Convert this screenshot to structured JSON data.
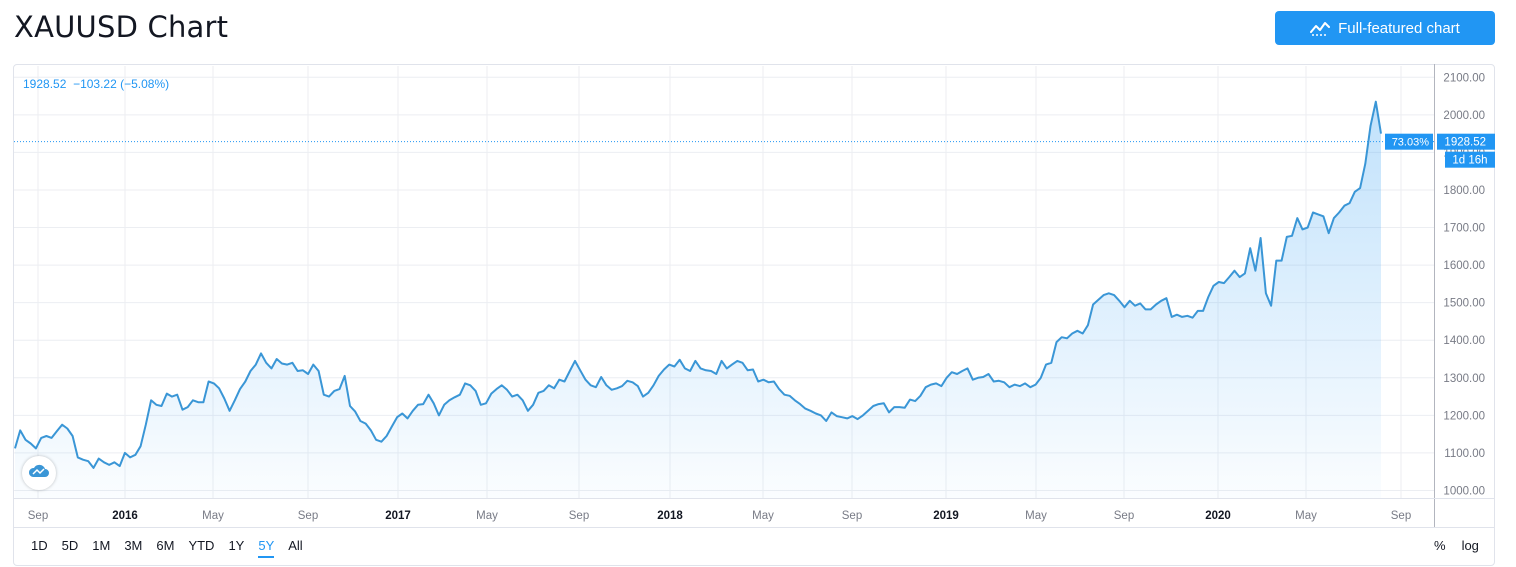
{
  "header": {
    "title": "XAUUSD Chart",
    "full_chart_label": "Full-featured chart",
    "full_chart_icon": "chart-line-icon"
  },
  "legend": {
    "last": "1928.52",
    "change": "−103.22",
    "change_pct": "(−5.08%)"
  },
  "price_tag": {
    "price": "1928.52",
    "percent": "73.03%",
    "countdown": "1d 16h"
  },
  "ranges": [
    "1D",
    "5D",
    "1M",
    "3M",
    "6M",
    "YTD",
    "1Y",
    "5Y",
    "All"
  ],
  "active_range": "5Y",
  "scale_toggles": {
    "percent": "%",
    "log": "log"
  },
  "colors": {
    "line": "#2196f3",
    "line_stroke": "#3a96d6",
    "grid": "#eceef2",
    "text": "#131722",
    "axis_text": "#787b86",
    "accent": "#2196f3"
  },
  "chart_data": {
    "type": "area",
    "title": "XAUUSD",
    "ylim": [
      980,
      2130
    ],
    "y_ticks": [
      "2100.00",
      "2000.00",
      "1900.00",
      "1800.00",
      "1700.00",
      "1600.00",
      "1500.00",
      "1400.00",
      "1300.00",
      "1200.00",
      "1100.00",
      "1000.00"
    ],
    "x_ticks": [
      {
        "label": "Sep",
        "bold": false
      },
      {
        "label": "2016",
        "bold": true
      },
      {
        "label": "May",
        "bold": false
      },
      {
        "label": "Sep",
        "bold": false
      },
      {
        "label": "2017",
        "bold": true
      },
      {
        "label": "May",
        "bold": false
      },
      {
        "label": "Sep",
        "bold": false
      },
      {
        "label": "2018",
        "bold": true
      },
      {
        "label": "May",
        "bold": false
      },
      {
        "label": "Sep",
        "bold": false
      },
      {
        "label": "2019",
        "bold": true
      },
      {
        "label": "May",
        "bold": false
      },
      {
        "label": "Sep",
        "bold": false
      },
      {
        "label": "2020",
        "bold": true
      },
      {
        "label": "May",
        "bold": false
      },
      {
        "label": "Sep",
        "bold": false
      }
    ],
    "grid": true,
    "series": [
      {
        "values": [
          1112,
          1160,
          1135,
          1125,
          1112,
          1140,
          1145,
          1140,
          1158,
          1175,
          1165,
          1145,
          1088,
          1082,
          1078,
          1060,
          1085,
          1075,
          1068,
          1075,
          1065,
          1100,
          1088,
          1095,
          1118,
          1175,
          1240,
          1228,
          1225,
          1258,
          1250,
          1255,
          1215,
          1222,
          1240,
          1235,
          1235,
          1290,
          1285,
          1272,
          1245,
          1212,
          1240,
          1270,
          1290,
          1318,
          1335,
          1365,
          1340,
          1325,
          1350,
          1338,
          1335,
          1340,
          1318,
          1320,
          1310,
          1335,
          1318,
          1255,
          1250,
          1265,
          1270,
          1305,
          1225,
          1210,
          1185,
          1178,
          1160,
          1135,
          1130,
          1145,
          1170,
          1195,
          1205,
          1192,
          1212,
          1228,
          1230,
          1255,
          1232,
          1200,
          1228,
          1240,
          1248,
          1255,
          1285,
          1280,
          1265,
          1228,
          1232,
          1258,
          1270,
          1280,
          1268,
          1250,
          1255,
          1240,
          1212,
          1228,
          1260,
          1265,
          1280,
          1272,
          1295,
          1290,
          1318,
          1345,
          1320,
          1295,
          1280,
          1275,
          1302,
          1280,
          1268,
          1272,
          1278,
          1292,
          1288,
          1278,
          1250,
          1260,
          1280,
          1305,
          1322,
          1335,
          1330,
          1348,
          1325,
          1318,
          1345,
          1325,
          1320,
          1318,
          1310,
          1345,
          1325,
          1335,
          1345,
          1340,
          1320,
          1322,
          1290,
          1295,
          1288,
          1290,
          1270,
          1255,
          1252,
          1240,
          1230,
          1218,
          1212,
          1205,
          1200,
          1185,
          1208,
          1198,
          1195,
          1192,
          1198,
          1190,
          1200,
          1212,
          1225,
          1230,
          1232,
          1208,
          1222,
          1222,
          1220,
          1242,
          1238,
          1252,
          1275,
          1282,
          1285,
          1278,
          1300,
          1315,
          1310,
          1318,
          1325,
          1295,
          1300,
          1302,
          1310,
          1290,
          1292,
          1288,
          1275,
          1282,
          1278,
          1285,
          1275,
          1282,
          1300,
          1335,
          1340,
          1395,
          1408,
          1405,
          1418,
          1425,
          1418,
          1440,
          1495,
          1508,
          1520,
          1525,
          1520,
          1505,
          1488,
          1505,
          1492,
          1498,
          1482,
          1482,
          1495,
          1505,
          1512,
          1462,
          1468,
          1462,
          1465,
          1460,
          1478,
          1478,
          1515,
          1545,
          1555,
          1552,
          1568,
          1585,
          1568,
          1578,
          1645,
          1585,
          1672,
          1525,
          1492,
          1612,
          1612,
          1675,
          1678,
          1725,
          1695,
          1700,
          1740,
          1735,
          1730,
          1685,
          1725,
          1740,
          1758,
          1765,
          1795,
          1805,
          1870,
          1970,
          2035,
          1950
        ]
      }
    ]
  }
}
